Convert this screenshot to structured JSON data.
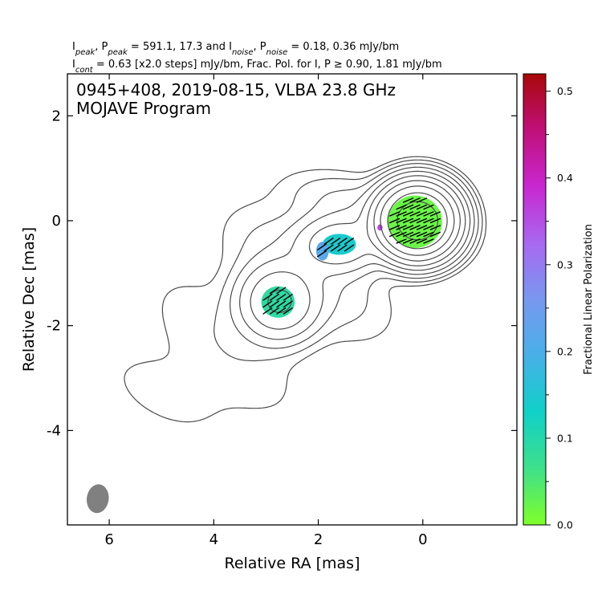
{
  "header": {
    "line1_parts": [
      "I",
      "peak",
      ", P",
      "peak",
      " = 591.1, 17.3 and I",
      "noise",
      ", P",
      "noise",
      " = 0.18, 0.36 mJy/bm"
    ],
    "line2_parts": [
      "I",
      "cont",
      " = 0.63 [x2.0 steps] mJy/bm, Frac. Pol. for I, P ≥ 0.90, 1.81 mJy/bm"
    ]
  },
  "chart_data": {
    "type": "heatmap",
    "title": "0945+408, 2019-08-15, VLBA 23.8 GHz",
    "subtitle": "MOJAVE Program",
    "xlabel": "Relative RA [mas]",
    "ylabel": "Relative Dec [mas]",
    "xlim": [
      6.8,
      -1.8
    ],
    "ylim": [
      -5.8,
      2.8
    ],
    "xticks": [
      6,
      4,
      2,
      0
    ],
    "yticks": [
      2,
      0,
      -2,
      -4
    ],
    "xtick_labels": [
      "6",
      "4",
      "2",
      "0"
    ],
    "ytick_labels": [
      "2",
      "0",
      "-2",
      "-4"
    ],
    "colorbar": {
      "label": "Fractional Linear Polarization",
      "range": [
        0.0,
        0.52
      ],
      "ticks": [
        0.0,
        0.1,
        0.2,
        0.3,
        0.4,
        0.5
      ],
      "tick_labels": [
        "0.0",
        "0.1",
        "0.2",
        "0.3",
        "0.4",
        "0.5"
      ],
      "colors": [
        "#7fff2a",
        "#3ee08a",
        "#10d0c8",
        "#48b0e8",
        "#7898f0",
        "#a868f0",
        "#c828d0",
        "#c0107a",
        "#a80808"
      ]
    },
    "polarization_regions": [
      {
        "x": 0.15,
        "y": -0.02,
        "rx": 0.52,
        "ry": 0.5,
        "fraction": 0.02
      },
      {
        "x": 1.6,
        "y": -0.45,
        "rx": 0.32,
        "ry": 0.2,
        "fraction": 0.14
      },
      {
        "x": 1.92,
        "y": -0.58,
        "rx": 0.12,
        "ry": 0.18,
        "fraction": 0.22
      },
      {
        "x": 2.77,
        "y": -1.55,
        "rx": 0.32,
        "ry": 0.3,
        "fraction": 0.09
      },
      {
        "x": 0.82,
        "y": -0.13,
        "rx": 0.05,
        "ry": 0.06,
        "fraction": 0.36
      }
    ],
    "contour_levels_mJy": [
      0.63,
      1.26,
      2.52,
      5.04,
      10.08,
      20.16,
      40.32,
      80.64,
      161.28,
      322.56
    ],
    "beam": {
      "x": 6.22,
      "y": -5.3,
      "major": 0.55,
      "minor": 0.42
    },
    "grid": false
  }
}
